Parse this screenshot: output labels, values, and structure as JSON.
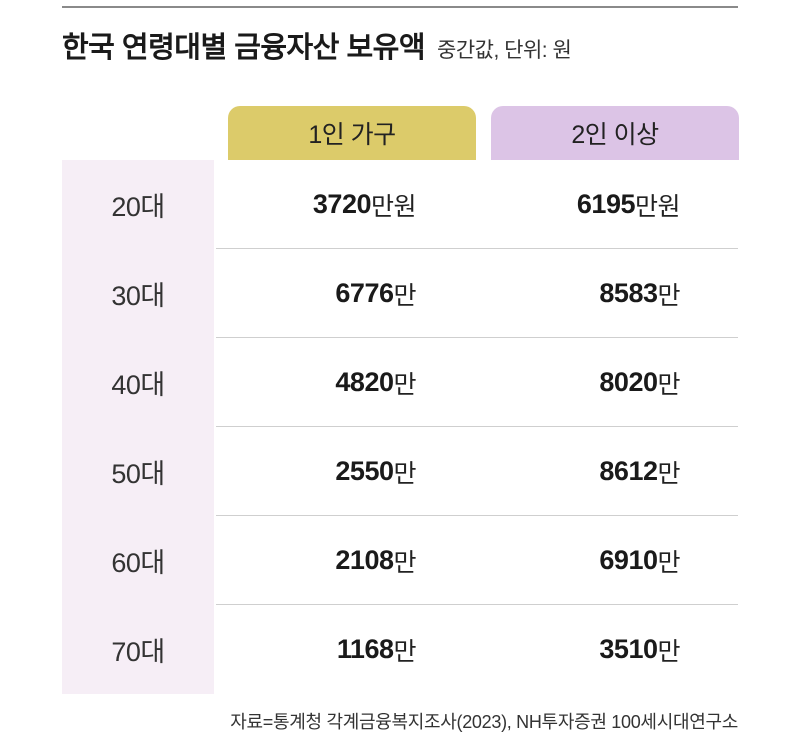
{
  "title": "한국 연령대별 금융자산 보유액",
  "subtitle": "중간값, 단위: 원",
  "colors": {
    "header_single": "#dccb6a",
    "header_multi": "#dcc4e6",
    "age_column": "#f6eef6"
  },
  "chart_data": {
    "type": "table",
    "title": "한국 연령대별 금융자산 보유액",
    "subtitle": "중간값, 단위: 원",
    "columns": [
      "1인 가구",
      "2인 이상"
    ],
    "rows": [
      {
        "age": "20대",
        "single": "3720",
        "single_unit": "만원",
        "multi": "6195",
        "multi_unit": "만원"
      },
      {
        "age": "30대",
        "single": "6776",
        "single_unit": "만",
        "multi": "8583",
        "multi_unit": "만"
      },
      {
        "age": "40대",
        "single": "4820",
        "single_unit": "만",
        "multi": "8020",
        "multi_unit": "만"
      },
      {
        "age": "50대",
        "single": "2550",
        "single_unit": "만",
        "multi": "8612",
        "multi_unit": "만"
      },
      {
        "age": "60대",
        "single": "2108",
        "single_unit": "만",
        "multi": "6910",
        "multi_unit": "만"
      },
      {
        "age": "70대",
        "single": "1168",
        "single_unit": "만",
        "multi": "3510",
        "multi_unit": "만"
      }
    ],
    "source": "자료=통계청 각계금융복지조사(2023), NH투자증권 100세시대연구소"
  }
}
